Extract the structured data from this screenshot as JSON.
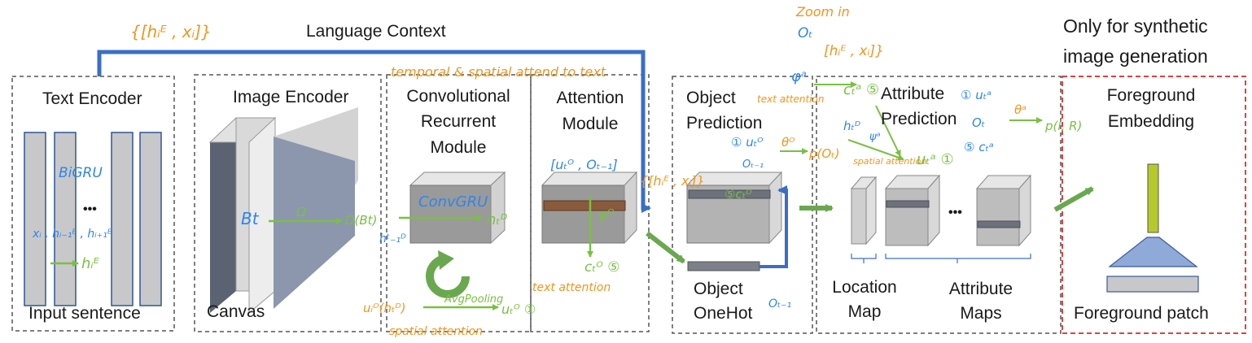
{
  "labels": {
    "language_context": "Language Context",
    "only_synthetic_1": "Only for synthetic",
    "only_synthetic_2": "image generation",
    "text_encoder": "Text Encoder",
    "input_sentence": "Input sentence",
    "image_encoder": "Image Encoder",
    "canvas": "Canvas",
    "conv_1": "Convolutional",
    "conv_2": "Recurrent",
    "conv_3": "Module",
    "attn_1": "Attention",
    "attn_2": "Module",
    "objpred_1": "Object",
    "objpred_2": "Prediction",
    "objonehot_1": "Object",
    "objonehot_2": "OneHot",
    "attrpred_1": "Attribute",
    "attrpred_2": "Prediction",
    "location_1": "Location",
    "location_2": "Map",
    "attrmaps_1": "Attribute",
    "attrmaps_2": "Maps",
    "fg_embed_1": "Foreground",
    "fg_embed_2": "Embedding",
    "fg_patch": "Foreground patch",
    "ellipsis": "•••"
  },
  "annotations": {
    "hi_xi_top": "{[hᵢᴱ , xᵢ]}",
    "bigru": "BiGRU",
    "xi_h": "xᵢ , hᵢ₋₁ᴱ , hᵢ₊₁ᴱ",
    "hi_e": "hᵢᴱ",
    "bt": "Bt",
    "omega": "Ω",
    "omega_bt": "Ω(Bt)",
    "h_t_minus1": "hᵗ₋₁ᴰ",
    "convgru": "ConvGRU",
    "h_t_d": "hₜᴰ",
    "temporal_spatial": "temporal & spatial attend to text",
    "ut_ot": "[uₜᴼ , Oₜ₋₁]",
    "hi_xi_mid": "{[hᵢᴱ , xᵢ]}",
    "phi_o": "φᴼ",
    "ct_o": "cₜᴼ ⑤",
    "text_attention_1": "text attention",
    "ui_ht": "uᵢᴼ(hₜᴰ)",
    "avgpooling": "AvgPooling",
    "ut_o": "uₜᴼ ①",
    "spatial_attention_1": "spatial attention",
    "zoom_in": "Zoom in",
    "ot_top": "Oₜ",
    "hi_xi_right": "[hᵢᴱ , xᵢ]}",
    "phi_a": "φᵃ",
    "text_attention_2": "text attention",
    "ct_a_top": "cₜᵃ ⑤",
    "ut_o_obj": "① uₜᴼ",
    "ot_minus1_obj": "Oₜ₋₁",
    "theta_o": "θᴼ",
    "p_ot": "p(Oₜ)",
    "ct_o_obj": "⑤cₜᴼ",
    "ot_minus1_onehot": "Oₜ₋₁",
    "h_t_d_attr": "hₜᴰ",
    "psi_a": "ψᵃ",
    "spatial_attention_2": "spatial attention",
    "ut_a": "uₜᵃ ①",
    "ut_a_right": "① uₜᵃ",
    "ot_right": "Oₜ",
    "ct_a_right": "⑤ cₜᵃ",
    "theta_a": "θᵃ",
    "p_lr": "p(l, R)"
  },
  "colors": {
    "language_context_line": "#3a6fc4",
    "green_arrow": "#6aa84f",
    "grey_slab": "#c8c8ca",
    "dark_slab": "#5b6373",
    "red_box": "#e34040",
    "foreground_bar": "#b6c92b",
    "trapezoid": "#8fa9d8"
  }
}
